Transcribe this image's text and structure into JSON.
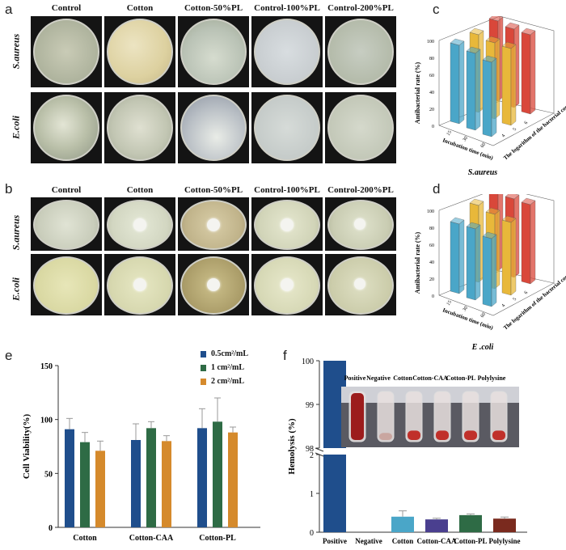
{
  "panels": {
    "a": "a",
    "b": "b",
    "c": "c",
    "d": "d",
    "e": "e",
    "f": "f"
  },
  "plates_a": {
    "columns": [
      "Control",
      "Cotton",
      "Cotton-50%PL",
      "Control-100%PL",
      "Control-200%PL"
    ],
    "rows": [
      "S.aureus",
      "E.coli"
    ]
  },
  "plates_b": {
    "columns": [
      "Control",
      "Cotton",
      "Cotton-50%PL",
      "Control-100%PL",
      "Control-200%PL"
    ],
    "rows": [
      "S.aureus",
      "E.coli"
    ]
  },
  "colors": {
    "blue": "#1f4e8c",
    "green": "#2e6b45",
    "orange": "#d58a2c",
    "teal": "#4aa6c8",
    "yellow": "#e8b83a",
    "red": "#d9473a",
    "purple": "#4a3f8f",
    "darkred": "#7a2a1e"
  },
  "chart_data": [
    {
      "id": "c",
      "type": "bar",
      "yaxis_label": "Antibacterial rate (%)",
      "x_axis_label": "Incubation time (min)",
      "z_axis_label": "The logarithm of the bacterial concentration",
      "yticks": [
        "0",
        "20",
        "40",
        "60",
        "80",
        "100"
      ],
      "xticks": [
        "4",
        "5",
        "6"
      ],
      "zticks": [
        "15",
        "30",
        "60"
      ],
      "caption": "S.aureus",
      "series": [
        {
          "name": "4",
          "values": [
            97,
            95,
            92
          ]
        },
        {
          "name": "5",
          "values": [
            96,
            94,
            95
          ]
        },
        {
          "name": "6",
          "values": [
            99,
            97,
            98
          ]
        }
      ]
    },
    {
      "id": "d",
      "type": "bar",
      "yaxis_label": "Antibacterial rate (%)",
      "x_axis_label": "Incubation time (min)",
      "z_axis_label": "The logarithm of the bacterial concentration",
      "yticks": [
        "0",
        "20",
        "40",
        "60",
        "80",
        "100"
      ],
      "xticks": [
        "4",
        "5",
        "6"
      ],
      "zticks": [
        "15",
        "30",
        "60"
      ],
      "caption": "E .coli",
      "series": [
        {
          "name": "4",
          "values": [
            86,
            88,
            84
          ]
        },
        {
          "name": "5",
          "values": [
            95,
            92,
            90
          ]
        },
        {
          "name": "6",
          "values": [
            99,
            97,
            98
          ]
        }
      ]
    },
    {
      "id": "e",
      "type": "bar",
      "ylabel": "Cell Viability(%)",
      "ylim": [
        0,
        150
      ],
      "yticks": [
        "0",
        "50",
        "100",
        "150"
      ],
      "categories": [
        "Cotton",
        "Cotton-CAA",
        "Cotton-PL"
      ],
      "series": [
        {
          "name": "0.5cm²/mL",
          "values": [
            91,
            81,
            92
          ],
          "errors": [
            10,
            15,
            18
          ],
          "color": "#1f4e8c"
        },
        {
          "name": "1 cm²/mL",
          "values": [
            79,
            92,
            98
          ],
          "errors": [
            9,
            6,
            22
          ],
          "color": "#2e6b45"
        },
        {
          "name": "2 cm²/mL",
          "values": [
            71,
            80,
            88
          ],
          "errors": [
            9,
            5,
            5
          ],
          "color": "#d58a2c"
        }
      ]
    },
    {
      "id": "f",
      "type": "bar",
      "ylabel": "Hemolysis (%)",
      "upper_ticks": [
        "98",
        "99",
        "100"
      ],
      "lower_ticks": [
        "0",
        "1",
        "2"
      ],
      "categories": [
        "Positive",
        "Negative",
        "Cotton",
        "Cotton-CAA",
        "Cotton-PL",
        "Polylysine"
      ],
      "values": [
        100,
        0,
        0.4,
        0.33,
        0.44,
        0.35
      ],
      "errors": [
        0,
        0,
        0.15,
        0.03,
        0.03,
        0.04
      ],
      "colors": [
        "#1f4e8c",
        "#1f4e8c",
        "#4aa6c8",
        "#4a3f8f",
        "#2e6b45",
        "#7a2a1e"
      ],
      "inset_labels": [
        "Positive",
        "Negative",
        "Cotton",
        "Cotton-CAA",
        "Cotton-PL",
        "Polylysine"
      ]
    }
  ]
}
